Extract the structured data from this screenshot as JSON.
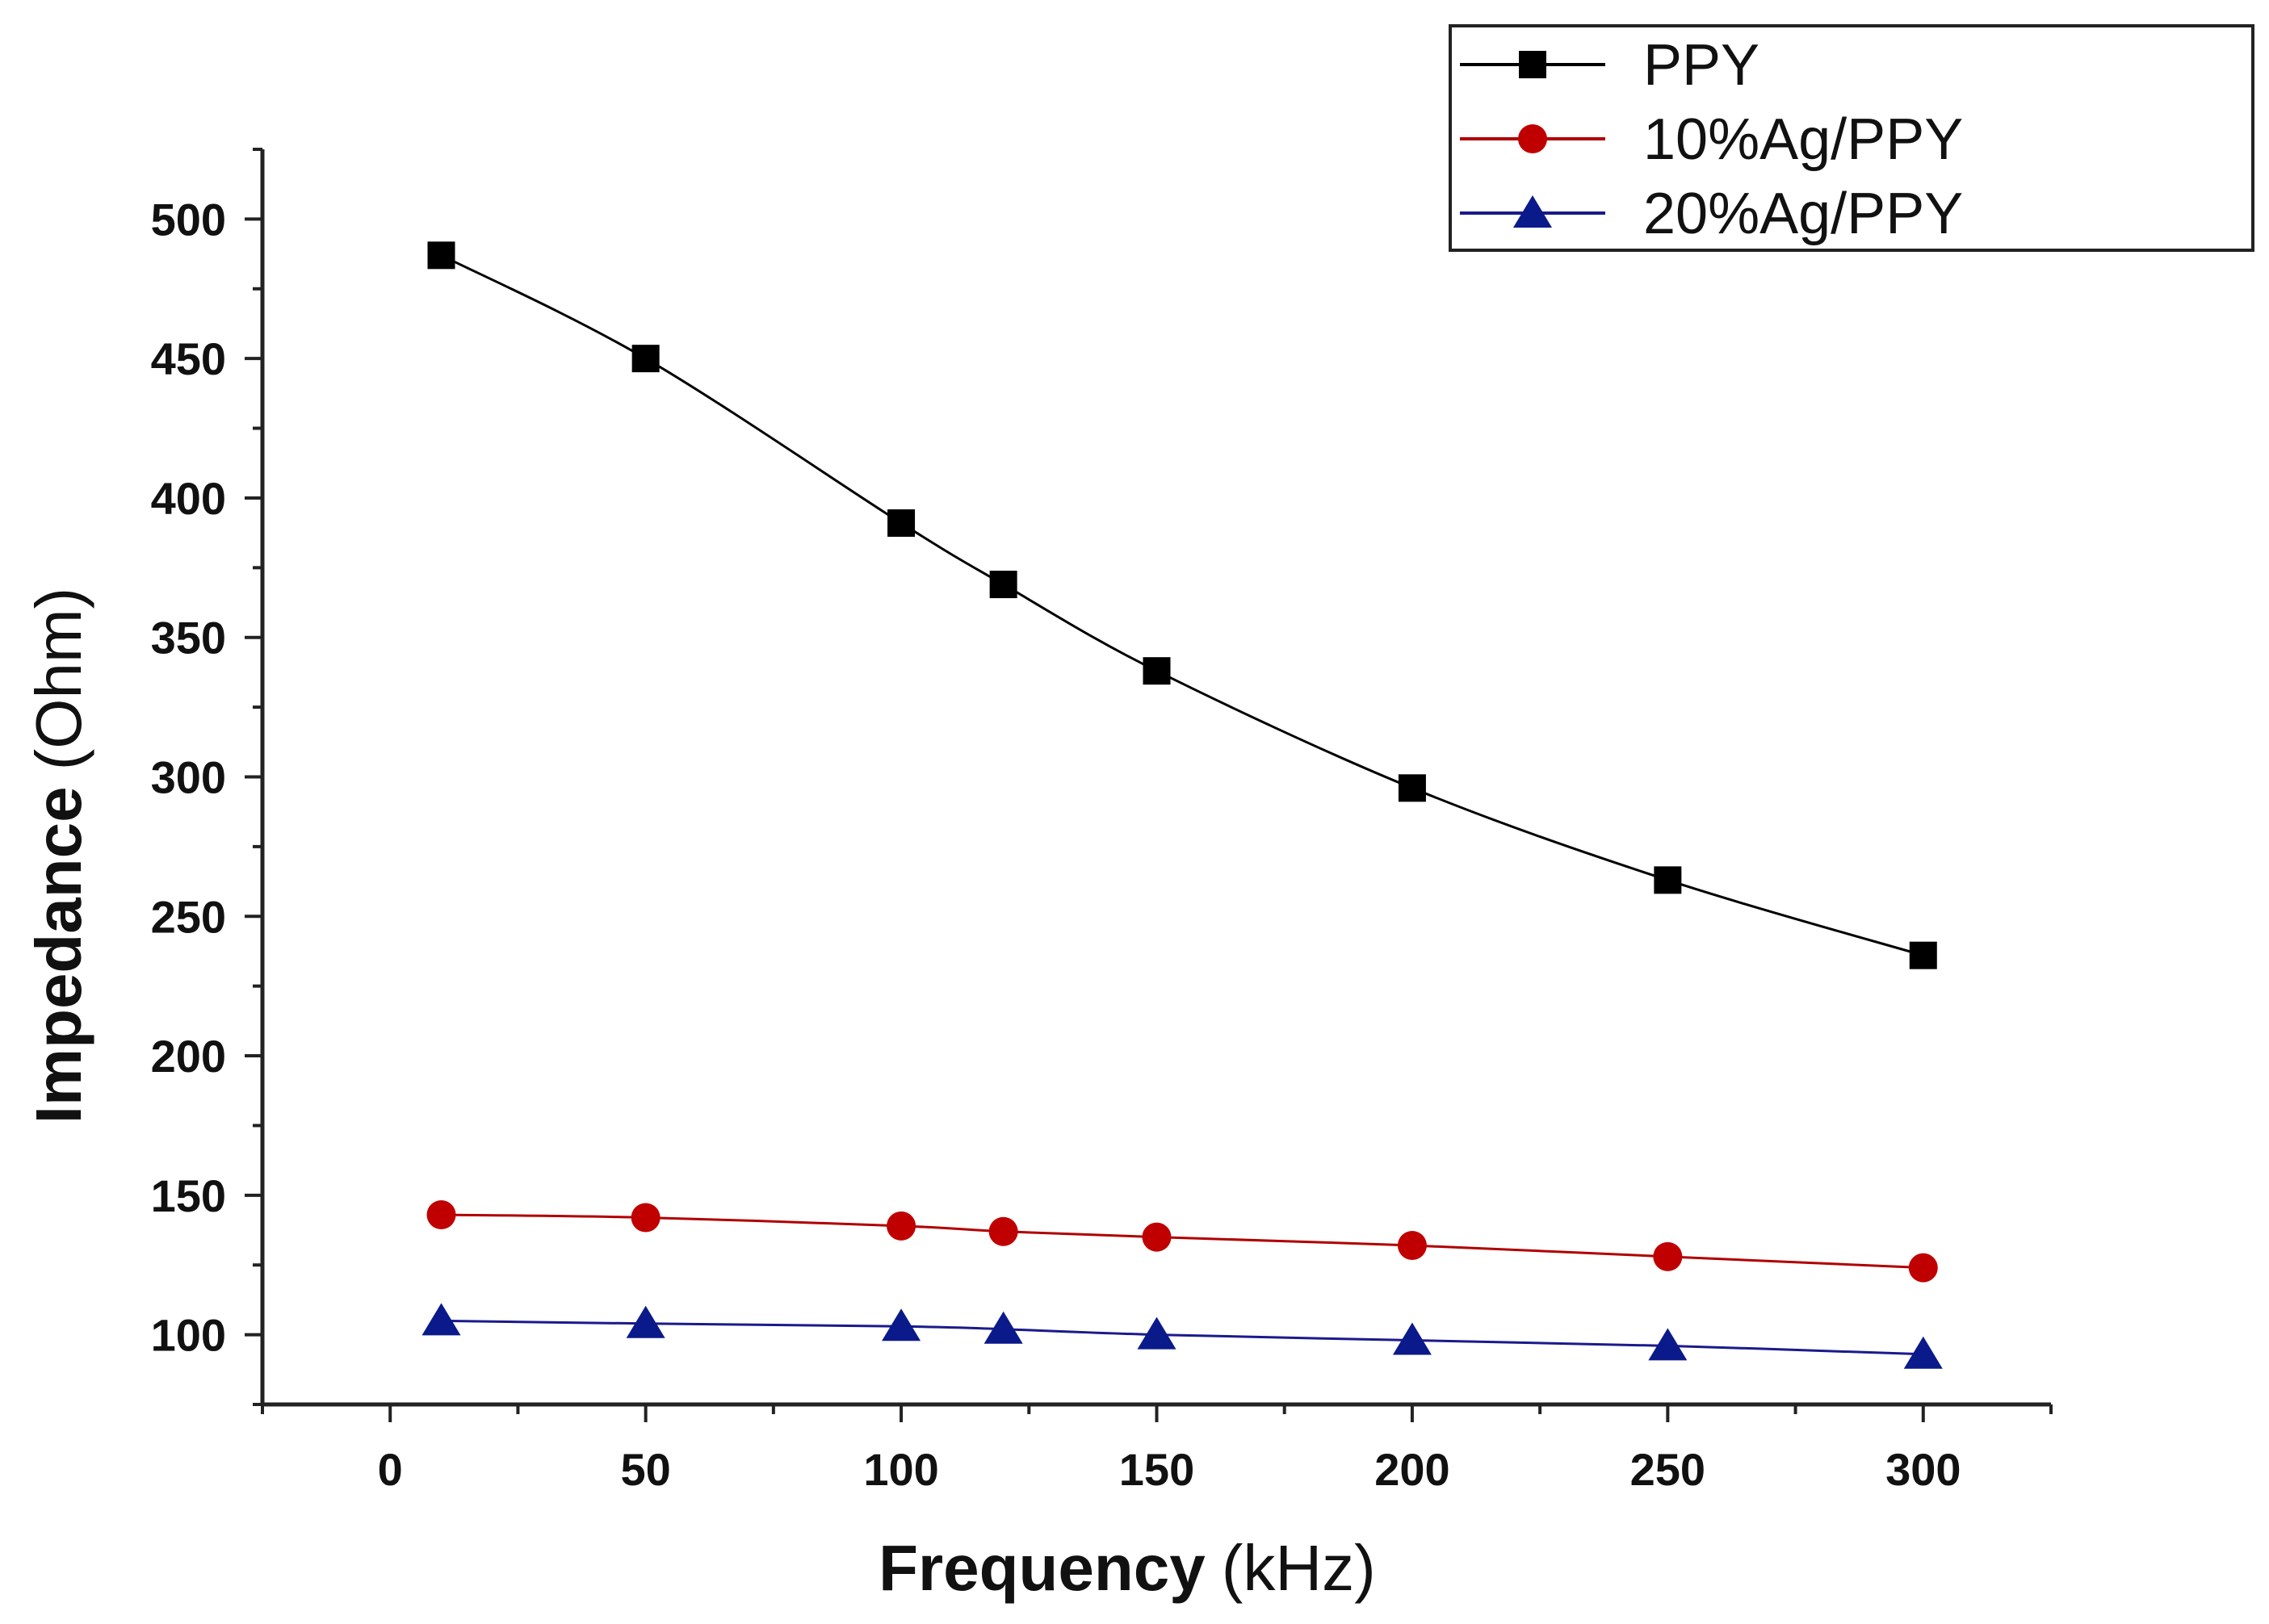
{
  "chart_data": {
    "type": "line",
    "title": "",
    "xlabel": "Frequency",
    "xunit": "(kHz)",
    "ylabel": "Impedance",
    "yunit": "(Ohm)",
    "xlim": [
      -25,
      325
    ],
    "ylim": [
      75,
      525
    ],
    "xticks": [
      0,
      50,
      100,
      150,
      200,
      250,
      300
    ],
    "yticks": [
      100,
      150,
      200,
      250,
      300,
      350,
      400,
      450,
      500
    ],
    "grid": false,
    "legend_position": "top-right",
    "x": [
      10,
      50,
      100,
      120,
      150,
      200,
      250,
      300
    ],
    "series": [
      {
        "name": "PPY",
        "marker": "square",
        "line_color": "#000000",
        "marker_color": "#000000",
        "values": [
          487,
          450,
          391,
          369,
          338,
          296,
          263,
          236
        ]
      },
      {
        "name": "10%Ag/PPY",
        "marker": "circle",
        "line_color": "#b00000",
        "marker_color": "#c00000",
        "values": [
          143,
          142,
          139,
          137,
          135,
          132,
          128,
          124
        ]
      },
      {
        "name": "20%Ag/PPY",
        "marker": "triangle",
        "line_color": "#1a1a8c",
        "marker_color": "#0a1a8a",
        "values": [
          105,
          104,
          103,
          102,
          100,
          98,
          96,
          93
        ]
      }
    ]
  }
}
